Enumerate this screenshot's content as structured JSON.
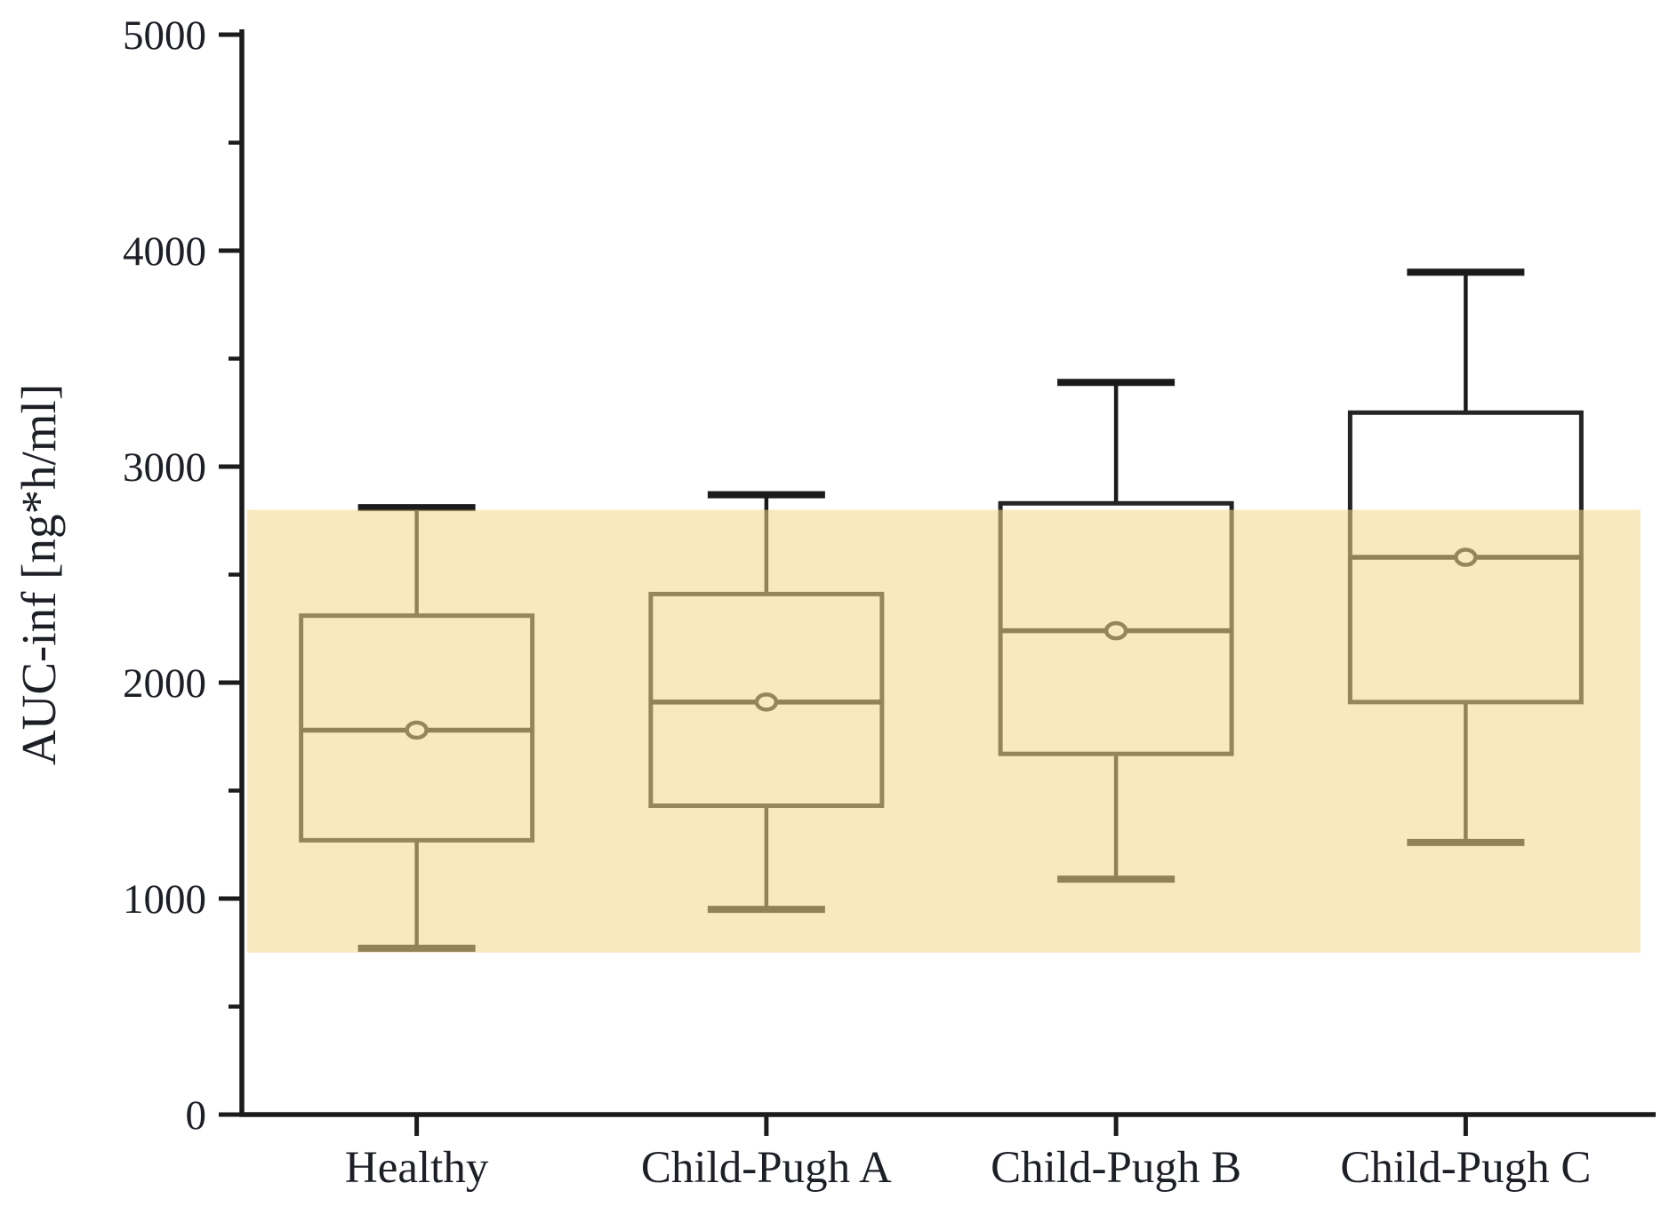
{
  "figure": {
    "kind": "statistical-boxplot-figure",
    "background_color": "#ffffff"
  },
  "chart_data": {
    "type": "box",
    "title": "",
    "xlabel": "",
    "ylabel": "AUC-inf [ng*h/ml]",
    "ylim": [
      0,
      5000
    ],
    "ytick_major_step": 1000,
    "ytick_minor_step": 500,
    "ytick_labels": [
      "0",
      "1000",
      "2000",
      "3000",
      "4000",
      "5000"
    ],
    "grid": false,
    "legend": null,
    "categories": [
      "Healthy",
      "Child-Pugh A",
      "Child-Pugh B",
      "Child-Pugh C"
    ],
    "boxes": [
      {
        "category": "Healthy",
        "whisker_low": 770,
        "q1": 1270,
        "median": 1780,
        "mean": 1780,
        "q3": 2310,
        "whisker_high": 2810
      },
      {
        "category": "Child-Pugh A",
        "whisker_low": 950,
        "q1": 1430,
        "median": 1910,
        "mean": 1910,
        "q3": 2410,
        "whisker_high": 2870
      },
      {
        "category": "Child-Pugh B",
        "whisker_low": 1090,
        "q1": 1670,
        "median": 2240,
        "mean": 2240,
        "q3": 2830,
        "whisker_high": 3390
      },
      {
        "category": "Child-Pugh C",
        "whisker_low": 1260,
        "q1": 1910,
        "median": 2580,
        "mean": 2580,
        "q3": 3250,
        "whisker_high": 3900
      }
    ],
    "reference_band": {
      "low": 750,
      "high": 2800,
      "fill": "#F6D78B",
      "opacity": 0.55
    },
    "colors": {
      "line": "#1b1b1b",
      "box_stroke": "#242424",
      "box_fill": "#ffffff",
      "text": "#1c1f26"
    }
  }
}
